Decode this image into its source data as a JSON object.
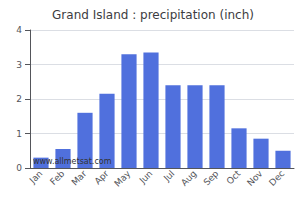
{
  "chart_data": {
    "type": "bar",
    "title": "Grand Island : precipitation (inch)",
    "categories": [
      "Jan",
      "Feb",
      "Mar",
      "Apr",
      "May",
      "Jun",
      "Jul",
      "Aug",
      "Sep",
      "Oct",
      "Nov",
      "Dec"
    ],
    "values": [
      0.3,
      0.55,
      1.6,
      2.15,
      3.3,
      3.35,
      2.4,
      2.4,
      2.4,
      1.15,
      0.85,
      0.5
    ],
    "ylim": [
      0,
      4
    ],
    "yticks": [
      0,
      1,
      2,
      3,
      4
    ],
    "grid": true,
    "annotations": [
      "www.allmetsat.com"
    ]
  }
}
